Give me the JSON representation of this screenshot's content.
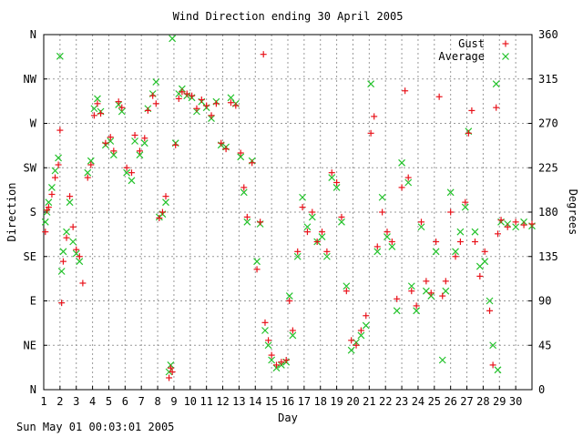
{
  "chart_data": {
    "type": "scatter",
    "title": "Wind Direction ending 30 April 2005",
    "xlabel": "Day",
    "ylabel": "Direction",
    "y2label": "Degrees",
    "xlim": [
      1,
      31
    ],
    "ylim": [
      0,
      360
    ],
    "x_ticks": [
      "1",
      "2",
      "3",
      "4",
      "5",
      "6",
      "7",
      "8",
      "9",
      "10",
      "11",
      "12",
      "13",
      "14",
      "15",
      "16",
      "17",
      "18",
      "19",
      "20",
      "21",
      "22",
      "23",
      "24",
      "25",
      "26",
      "27",
      "28",
      "29",
      "30"
    ],
    "y_left_ticks": [
      "N",
      "NE",
      "E",
      "SE",
      "S",
      "SW",
      "W",
      "NW",
      "N"
    ],
    "y_right_ticks": [
      "0",
      "45",
      "90",
      "135",
      "180",
      "225",
      "270",
      "315",
      "360"
    ],
    "grid": true,
    "legend_position": "top-right",
    "colors": {
      "gust": "#e8131b",
      "average": "#22c22a",
      "text": "#000000",
      "grid": "#999999"
    },
    "series": [
      {
        "name": "Gust",
        "marker": "plus",
        "points": [
          [
            1.1,
            160
          ],
          [
            1.2,
            182
          ],
          [
            1.3,
            185
          ],
          [
            1.5,
            198
          ],
          [
            1.7,
            215
          ],
          [
            1.9,
            228
          ],
          [
            2.0,
            263
          ],
          [
            2.1,
            88
          ],
          [
            2.2,
            130
          ],
          [
            2.4,
            154
          ],
          [
            2.6,
            196
          ],
          [
            2.8,
            165
          ],
          [
            3.0,
            142
          ],
          [
            3.2,
            135
          ],
          [
            3.4,
            108
          ],
          [
            3.7,
            215
          ],
          [
            3.9,
            228
          ],
          [
            4.1,
            278
          ],
          [
            4.3,
            290
          ],
          [
            4.5,
            280
          ],
          [
            4.8,
            250
          ],
          [
            5.1,
            256
          ],
          [
            5.3,
            242
          ],
          [
            5.6,
            292
          ],
          [
            5.8,
            286
          ],
          [
            6.1,
            225
          ],
          [
            6.4,
            220
          ],
          [
            6.6,
            258
          ],
          [
            6.9,
            242
          ],
          [
            7.2,
            255
          ],
          [
            7.4,
            283
          ],
          [
            7.7,
            298
          ],
          [
            7.9,
            290
          ],
          [
            8.1,
            174
          ],
          [
            8.3,
            180
          ],
          [
            8.5,
            196
          ],
          [
            8.7,
            12
          ],
          [
            8.8,
            22
          ],
          [
            8.9,
            18
          ],
          [
            9.1,
            248
          ],
          [
            9.3,
            295
          ],
          [
            9.5,
            302
          ],
          [
            9.8,
            300
          ],
          [
            10.1,
            298
          ],
          [
            10.4,
            285
          ],
          [
            10.7,
            294
          ],
          [
            11.0,
            288
          ],
          [
            11.3,
            278
          ],
          [
            11.6,
            290
          ],
          [
            11.9,
            250
          ],
          [
            12.2,
            244
          ],
          [
            12.5,
            291
          ],
          [
            12.8,
            288
          ],
          [
            13.1,
            240
          ],
          [
            13.3,
            205
          ],
          [
            13.5,
            175
          ],
          [
            13.8,
            230
          ],
          [
            14.1,
            122
          ],
          [
            14.3,
            170
          ],
          [
            14.5,
            340
          ],
          [
            14.6,
            68
          ],
          [
            14.8,
            50
          ],
          [
            15.0,
            35
          ],
          [
            15.3,
            25
          ],
          [
            15.6,
            28
          ],
          [
            15.9,
            30
          ],
          [
            16.1,
            90
          ],
          [
            16.3,
            60
          ],
          [
            16.6,
            140
          ],
          [
            16.9,
            185
          ],
          [
            17.2,
            160
          ],
          [
            17.5,
            180
          ],
          [
            17.8,
            150
          ],
          [
            18.1,
            160
          ],
          [
            18.4,
            140
          ],
          [
            18.7,
            220
          ],
          [
            19.0,
            210
          ],
          [
            19.3,
            175
          ],
          [
            19.6,
            100
          ],
          [
            19.9,
            50
          ],
          [
            20.2,
            45
          ],
          [
            20.5,
            60
          ],
          [
            20.8,
            75
          ],
          [
            21.1,
            260
          ],
          [
            21.3,
            277
          ],
          [
            21.5,
            145
          ],
          [
            21.8,
            180
          ],
          [
            22.1,
            160
          ],
          [
            22.4,
            150
          ],
          [
            22.7,
            92
          ],
          [
            23.0,
            205
          ],
          [
            23.2,
            303
          ],
          [
            23.4,
            215
          ],
          [
            23.6,
            100
          ],
          [
            23.9,
            85
          ],
          [
            24.2,
            170
          ],
          [
            24.5,
            110
          ],
          [
            24.8,
            98
          ],
          [
            25.1,
            150
          ],
          [
            25.3,
            297
          ],
          [
            25.5,
            95
          ],
          [
            25.7,
            110
          ],
          [
            26.0,
            180
          ],
          [
            26.3,
            135
          ],
          [
            26.6,
            150
          ],
          [
            26.9,
            190
          ],
          [
            27.1,
            260
          ],
          [
            27.3,
            283
          ],
          [
            27.5,
            150
          ],
          [
            27.8,
            115
          ],
          [
            28.1,
            140
          ],
          [
            28.4,
            80
          ],
          [
            28.6,
            25
          ],
          [
            28.8,
            286
          ],
          [
            28.9,
            158
          ],
          [
            29.1,
            172
          ],
          [
            29.5,
            165
          ],
          [
            30.0,
            170
          ],
          [
            30.5,
            167
          ],
          [
            31.0,
            168
          ]
        ]
      },
      {
        "name": "Average",
        "marker": "x",
        "points": [
          [
            1.1,
            170
          ],
          [
            1.2,
            180
          ],
          [
            1.3,
            190
          ],
          [
            1.5,
            205
          ],
          [
            1.7,
            222
          ],
          [
            1.9,
            235
          ],
          [
            2.0,
            338
          ],
          [
            2.1,
            120
          ],
          [
            2.2,
            140
          ],
          [
            2.4,
            160
          ],
          [
            2.6,
            190
          ],
          [
            2.8,
            150
          ],
          [
            3.0,
            138
          ],
          [
            3.2,
            130
          ],
          [
            3.7,
            220
          ],
          [
            3.9,
            232
          ],
          [
            4.1,
            285
          ],
          [
            4.3,
            295
          ],
          [
            4.5,
            282
          ],
          [
            4.8,
            248
          ],
          [
            5.1,
            252
          ],
          [
            5.3,
            238
          ],
          [
            5.6,
            289
          ],
          [
            5.8,
            282
          ],
          [
            6.1,
            220
          ],
          [
            6.4,
            212
          ],
          [
            6.6,
            252
          ],
          [
            6.9,
            238
          ],
          [
            7.2,
            250
          ],
          [
            7.4,
            285
          ],
          [
            7.7,
            300
          ],
          [
            7.9,
            312
          ],
          [
            8.1,
            175
          ],
          [
            8.3,
            178
          ],
          [
            8.5,
            190
          ],
          [
            8.7,
            18
          ],
          [
            8.8,
            25
          ],
          [
            8.9,
            356
          ],
          [
            9.1,
            250
          ],
          [
            9.3,
            300
          ],
          [
            9.5,
            305
          ],
          [
            9.8,
            298
          ],
          [
            10.1,
            296
          ],
          [
            10.4,
            282
          ],
          [
            10.7,
            292
          ],
          [
            11.0,
            286
          ],
          [
            11.3,
            275
          ],
          [
            11.6,
            292
          ],
          [
            11.9,
            248
          ],
          [
            12.2,
            246
          ],
          [
            12.5,
            296
          ],
          [
            12.8,
            290
          ],
          [
            13.1,
            236
          ],
          [
            13.3,
            200
          ],
          [
            13.5,
            170
          ],
          [
            13.8,
            232
          ],
          [
            14.1,
            130
          ],
          [
            14.3,
            168
          ],
          [
            14.6,
            60
          ],
          [
            14.8,
            45
          ],
          [
            15.0,
            30
          ],
          [
            15.3,
            22
          ],
          [
            15.6,
            25
          ],
          [
            15.9,
            28
          ],
          [
            16.1,
            95
          ],
          [
            16.3,
            55
          ],
          [
            16.6,
            135
          ],
          [
            16.9,
            195
          ],
          [
            17.2,
            165
          ],
          [
            17.5,
            175
          ],
          [
            17.8,
            150
          ],
          [
            18.1,
            155
          ],
          [
            18.4,
            135
          ],
          [
            18.7,
            215
          ],
          [
            19.0,
            205
          ],
          [
            19.3,
            170
          ],
          [
            19.6,
            105
          ],
          [
            19.9,
            40
          ],
          [
            20.2,
            48
          ],
          [
            20.5,
            55
          ],
          [
            20.8,
            65
          ],
          [
            21.1,
            310
          ],
          [
            21.5,
            140
          ],
          [
            21.8,
            195
          ],
          [
            22.1,
            155
          ],
          [
            22.4,
            145
          ],
          [
            22.7,
            80
          ],
          [
            23.0,
            230
          ],
          [
            23.4,
            210
          ],
          [
            23.6,
            105
          ],
          [
            23.9,
            80
          ],
          [
            24.2,
            165
          ],
          [
            24.5,
            100
          ],
          [
            24.8,
            95
          ],
          [
            25.1,
            140
          ],
          [
            25.5,
            30
          ],
          [
            25.7,
            100
          ],
          [
            26.0,
            200
          ],
          [
            26.3,
            140
          ],
          [
            26.6,
            160
          ],
          [
            26.9,
            185
          ],
          [
            27.1,
            262
          ],
          [
            27.5,
            160
          ],
          [
            27.8,
            125
          ],
          [
            28.1,
            130
          ],
          [
            28.4,
            90
          ],
          [
            28.6,
            45
          ],
          [
            28.8,
            310
          ],
          [
            28.9,
            20
          ],
          [
            29.1,
            170
          ],
          [
            29.5,
            168
          ],
          [
            30.0,
            165
          ],
          [
            30.5,
            170
          ],
          [
            31.0,
            166
          ]
        ]
      }
    ]
  },
  "footer": {
    "timestamp": "Sun May 01 00:03:01 2005"
  }
}
